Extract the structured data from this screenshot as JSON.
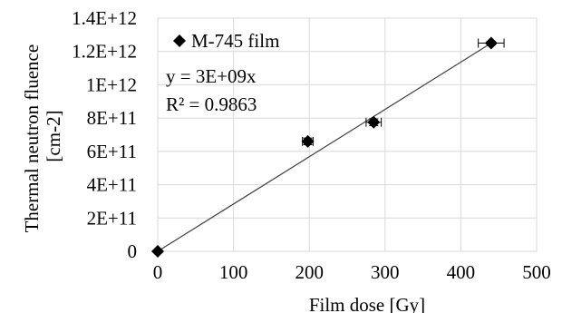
{
  "chart_data": {
    "type": "scatter",
    "series": [
      {
        "name": "M-745 film",
        "points": [
          {
            "x": 0,
            "y": 0
          },
          {
            "x": 198,
            "y": 660000000000,
            "x_err": 7,
            "y_err": 20000000000
          },
          {
            "x": 285,
            "y": 775000000000,
            "x_err": 10,
            "y_err": 20000000000
          },
          {
            "x": 440,
            "y": 1250000000000,
            "x_err": 17,
            "y_err": 10000000000
          }
        ],
        "color": "#000000",
        "marker": "diamond"
      }
    ],
    "trendline": {
      "type": "linear",
      "slope": 2840000000,
      "intercept": 0,
      "color": "#404040",
      "equation_text": "y = 3E+09x",
      "r2_text": "R² = 0.9863"
    },
    "xlabel": "Film dose [Gy]",
    "ylabel_lines": [
      "Thermal neutron fluence",
      "[cm-2]"
    ],
    "xlim": [
      0,
      500
    ],
    "ylim": [
      0,
      1400000000000
    ],
    "x_ticks": [
      {
        "value": 0,
        "label": "0"
      },
      {
        "value": 100,
        "label": "100"
      },
      {
        "value": 200,
        "label": "200"
      },
      {
        "value": 300,
        "label": "300"
      },
      {
        "value": 400,
        "label": "400"
      },
      {
        "value": 500,
        "label": "500"
      }
    ],
    "y_ticks": [
      {
        "value": 0,
        "label": "0"
      },
      {
        "value": 200000000000,
        "label": "2E+11"
      },
      {
        "value": 400000000000,
        "label": "4E+11"
      },
      {
        "value": 600000000000,
        "label": "6E+11"
      },
      {
        "value": 800000000000,
        "label": "8E+11"
      },
      {
        "value": 1000000000000,
        "label": "1E+12"
      },
      {
        "value": 1200000000000,
        "label": "1.2E+12"
      },
      {
        "value": 1400000000000,
        "label": "1.4E+12"
      }
    ],
    "grid": {
      "horizontal": true,
      "vertical": true
    },
    "legend_position": "top-left",
    "grid_color": "#d9d9d9",
    "axis_color": "#000000"
  }
}
